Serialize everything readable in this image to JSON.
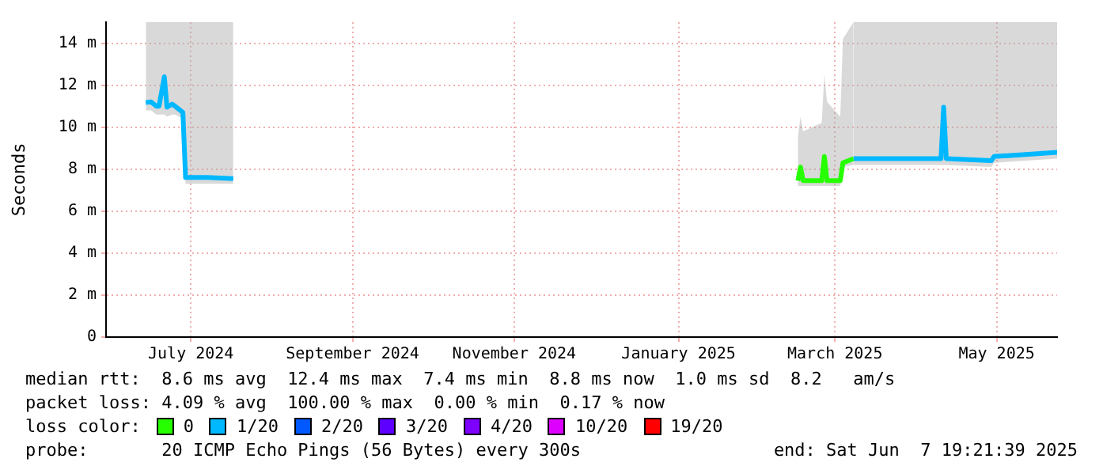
{
  "chart_data": {
    "type": "line",
    "ylabel": "Seconds",
    "legend_title": "loss color:",
    "legend": "bottom",
    "grid": true,
    "line_style": "solid",
    "marker": "none",
    "xlim": [
      "2024-06-14",
      "2025-06-07T19:21"
    ],
    "xticks": [
      {
        "value": "2024-07-16",
        "label": "July 2024"
      },
      {
        "value": "2024-09-15",
        "label": "September 2024"
      },
      {
        "value": "2024-11-15",
        "label": "November 2024"
      },
      {
        "value": "2025-01-16",
        "label": "January 2025"
      },
      {
        "value": "2025-03-16",
        "label": "March 2025"
      },
      {
        "value": "2025-05-16",
        "label": "May 2025"
      }
    ],
    "ylim": [
      0,
      15
    ],
    "yticks": [
      0,
      {
        "value": 2,
        "label": "2 m"
      },
      {
        "value": 4,
        "label": "4 m"
      },
      {
        "value": 6,
        "label": "6 m"
      },
      {
        "value": 8,
        "label": "8 m"
      },
      {
        "value": 10,
        "label": "10 m"
      },
      {
        "value": 12,
        "label": "12 m"
      },
      {
        "value": 14,
        "label": "14 m"
      }
    ],
    "series": [
      {
        "name": "0",
        "color": "#26ff00",
        "x": [
          "2025-03-02",
          "2025-03-03",
          "2025-03-04",
          "2025-03-11",
          "2025-03-12",
          "2025-03-13",
          "2025-03-18",
          "2025-03-19",
          "2025-03-23"
        ],
        "values": [
          7.45,
          8.1,
          7.45,
          7.45,
          8.6,
          7.45,
          7.45,
          8.3,
          8.5
        ],
        "lower": [
          7.2,
          7.2,
          7.2,
          7.2,
          7.2,
          7.2,
          7.2,
          8.1,
          8.2
        ],
        "upper": [
          9.5,
          10.5,
          9.8,
          10.2,
          12.5,
          11.2,
          10.5,
          14.2,
          15
        ]
      },
      {
        "name": "1/20",
        "color": "#00b8ff",
        "x": [
          "2024-06-29",
          "2024-07-01",
          "2024-07-03",
          "2024-07-04",
          "2024-07-06",
          "2024-07-07",
          "2024-07-09",
          "2024-07-10",
          "2024-07-13",
          "2024-07-14",
          "2024-07-22",
          "2024-08-01",
          "2025-03-01",
          "2025-03-23",
          "2025-04-25",
          "2025-04-26",
          "2025-04-27",
          "2025-05-14",
          "2025-05-15",
          "2025-05-27",
          "2025-06-07T19:21"
        ],
        "values": [
          11.17,
          11.2,
          11,
          11,
          12.4,
          10.95,
          11.1,
          11,
          10.7,
          7.6,
          7.6,
          7.55,
          null,
          8.5,
          8.5,
          10.95,
          8.5,
          8.4,
          8.6,
          8.7,
          8.8
        ],
        "lower": [
          10.8,
          10.8,
          10.6,
          10.6,
          10.6,
          10.5,
          10.6,
          10.6,
          10.4,
          7.3,
          7.3,
          7.3,
          null,
          8.2,
          8.2,
          8.2,
          8.2,
          8.1,
          8.3,
          8.4,
          8.5
        ],
        "upper": [
          15,
          15,
          15,
          15,
          15,
          15,
          15,
          15,
          15,
          15,
          15,
          15,
          null,
          15,
          15,
          15,
          15,
          15,
          15,
          15,
          15
        ]
      },
      {
        "name": "2/20",
        "color": "#0059ff"
      },
      {
        "name": "3/20",
        "color": "#5e00ff"
      },
      {
        "name": "4/20",
        "color": "#7e00ff"
      },
      {
        "name": "10/20",
        "color": "#dd00ff"
      },
      {
        "name": "19/20",
        "color": "#ff0000"
      }
    ],
    "annotations": [
      "median rtt:  8.6 ms avg  12.4 ms max  7.4 ms min  8.8 ms now  1.0 ms sd  8.2   am/s",
      "packet loss: 4.09 % avg  100.00 % max  0.00 % min  0.17 % now",
      "probe:       20 ICMP Echo Pings (56 Bytes) every 300s",
      "end: Sat Jun  7 19:21:39 2025"
    ]
  }
}
